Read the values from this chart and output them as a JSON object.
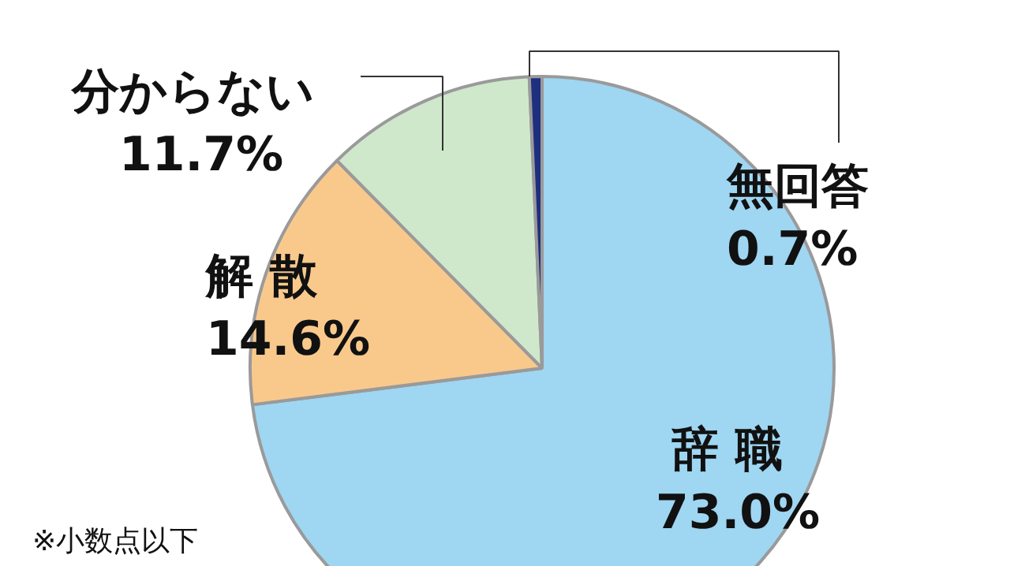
{
  "chart_data": {
    "type": "pie",
    "categories": [
      "辞 職",
      "解 散",
      "分からない",
      "無回答"
    ],
    "values": [
      73.0,
      14.6,
      11.7,
      0.7
    ],
    "value_labels": [
      "73.0%",
      "14.6%",
      "11.7%",
      "0.7%"
    ],
    "colors": [
      "#9fd6f2",
      "#f9c98c",
      "#cfe8cc",
      "#1f2f7f"
    ],
    "annotations": [
      "※小数点以下"
    ]
  }
}
